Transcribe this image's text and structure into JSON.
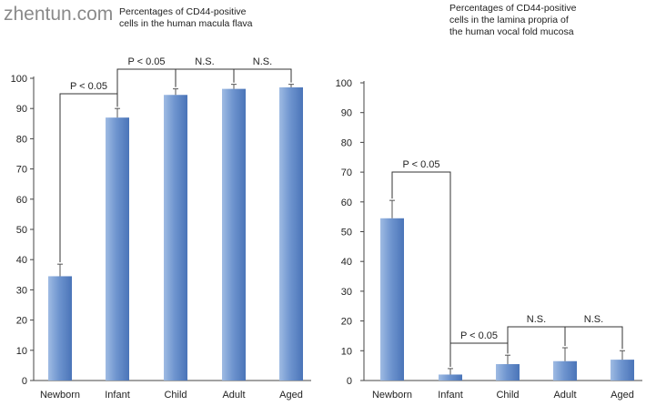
{
  "watermark": "zhentun.com",
  "chart_data": [
    {
      "type": "bar",
      "title": "Percentages of CD44-positive\ncells in the human macula flava",
      "categories": [
        "Newborn",
        "Infant",
        "Child",
        "Adult",
        "Aged"
      ],
      "values": [
        34.5,
        87,
        94.5,
        96.5,
        97
      ],
      "error_plus": [
        4,
        3,
        2,
        1.5,
        1
      ],
      "ylim": [
        0,
        100
      ],
      "yticks": [
        0,
        10,
        20,
        30,
        40,
        50,
        60,
        70,
        80,
        90,
        100
      ],
      "annotations": [
        {
          "from": 0,
          "to": 1,
          "label": "P < 0.05"
        },
        {
          "from": 1,
          "to": 2,
          "label": "P < 0.05"
        },
        {
          "from": 2,
          "to": 3,
          "label": "N.S."
        },
        {
          "from": 3,
          "to": 4,
          "label": "N.S."
        }
      ],
      "bar_color": "#6f95cf"
    },
    {
      "type": "bar",
      "title": "Percentages of CD44-positive\ncells in the lamina propria of\nthe human vocal fold mucosa",
      "categories": [
        "Newborn",
        "Infant",
        "Child",
        "Adult",
        "Aged"
      ],
      "values": [
        54.5,
        2,
        5.5,
        6.5,
        7
      ],
      "error_plus": [
        6,
        2,
        3,
        4.5,
        3
      ],
      "ylim": [
        0,
        100
      ],
      "yticks": [
        0,
        10,
        20,
        30,
        40,
        50,
        60,
        70,
        80,
        90,
        100
      ],
      "annotations": [
        {
          "from": 0,
          "to": 1,
          "label": "P < 0.05"
        },
        {
          "from": 1,
          "to": 2,
          "label": "P < 0.05"
        },
        {
          "from": 2,
          "to": 3,
          "label": "N.S."
        },
        {
          "from": 3,
          "to": 4,
          "label": "N.S."
        }
      ],
      "bar_color": "#6f95cf"
    }
  ]
}
